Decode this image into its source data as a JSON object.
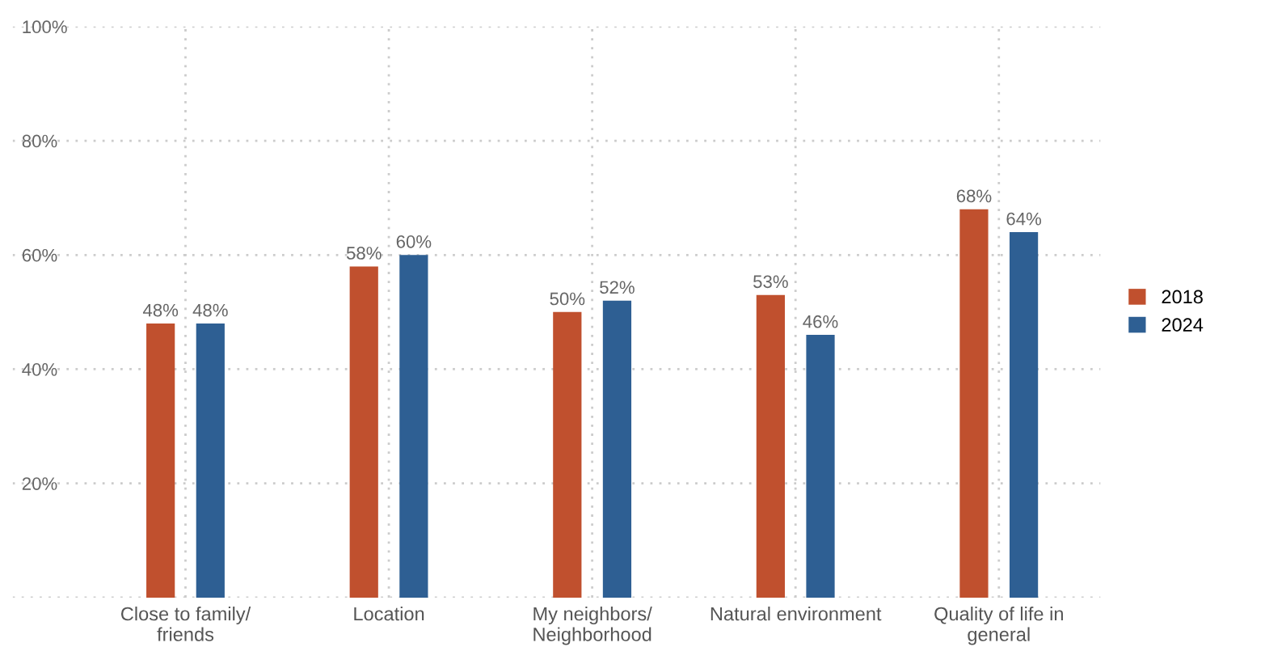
{
  "chart_data": {
    "type": "bar",
    "categories": [
      "Close to family/\nfriends",
      "Location",
      "My neighbors/\nNeighborhood",
      "Natural environment",
      "Quality of life in\ngeneral"
    ],
    "series": [
      {
        "name": "2018",
        "color": "#c0502e",
        "values": [
          48,
          58,
          50,
          53,
          68
        ],
        "value_labels": [
          "48%",
          "58%",
          "50%",
          "53%",
          "68%"
        ]
      },
      {
        "name": "2024",
        "color": "#2e5f93",
        "values": [
          48,
          60,
          52,
          46,
          64
        ],
        "value_labels": [
          "48%",
          "60%",
          "52%",
          "46%",
          "64%"
        ]
      }
    ],
    "ylim": [
      0,
      100
    ],
    "yticks": [
      {
        "value": 0,
        "label": null
      },
      {
        "value": 20,
        "label": "20%"
      },
      {
        "value": 40,
        "label": "40%"
      },
      {
        "value": 60,
        "label": "60%"
      },
      {
        "value": 80,
        "label": "80%"
      },
      {
        "value": 100,
        "label": "100%"
      }
    ],
    "grid": true,
    "legend": "right"
  }
}
